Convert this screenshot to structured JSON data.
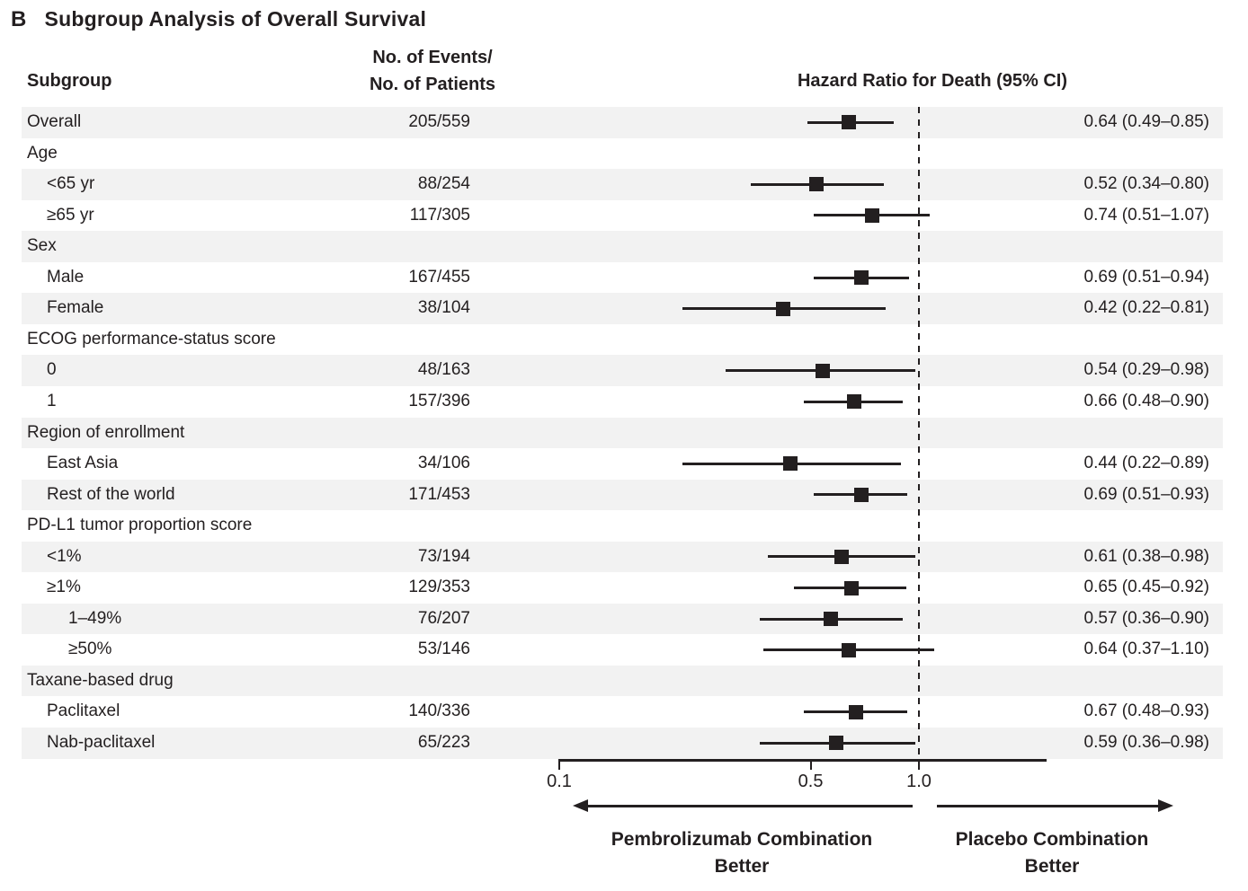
{
  "title": {
    "panel_letter": "B",
    "text": "Subgroup Analysis of Overall Survival"
  },
  "columns": {
    "subgroup": "Subgroup",
    "events_line1": "No. of Events/",
    "events_line2": "No. of Patients",
    "hazard": "Hazard Ratio for Death (95% CI)"
  },
  "footer": {
    "left_line1": "Pembrolizumab Combination",
    "left_line2": "Better",
    "right_line1": "Placebo Combination",
    "right_line2": "Better"
  },
  "colors": {
    "text": "#231f20",
    "band": "#f2f2f2",
    "marker": "#231f20",
    "line": "#231f20"
  },
  "chart_data": {
    "type": "scatter",
    "subtype": "forest-plot",
    "title": "Subgroup Analysis of Overall Survival",
    "xlabel": "Hazard Ratio for Death (95% CI)",
    "x_scale": "log",
    "x_ticks": [
      0.1,
      0.5,
      1.0
    ],
    "x_tick_labels": [
      "0.1",
      "0.5",
      "1.0"
    ],
    "x_range": [
      0.1,
      2.3
    ],
    "reference_line": 1.0,
    "legend_position": "none",
    "grid": false,
    "rows": [
      {
        "label": "Overall",
        "indent": 0,
        "header": false,
        "shaded": true,
        "events": "205/559",
        "hr": 0.64,
        "ci_low": 0.49,
        "ci_high": 0.85,
        "hr_text": "0.64 (0.49–0.85)"
      },
      {
        "label": "Age",
        "indent": 0,
        "header": true,
        "shaded": false
      },
      {
        "label": "<65 yr",
        "indent": 1,
        "header": false,
        "shaded": true,
        "events": "88/254",
        "hr": 0.52,
        "ci_low": 0.34,
        "ci_high": 0.8,
        "hr_text": "0.52 (0.34–0.80)"
      },
      {
        "label": "≥65 yr",
        "indent": 1,
        "header": false,
        "shaded": false,
        "events": "117/305",
        "hr": 0.74,
        "ci_low": 0.51,
        "ci_high": 1.07,
        "hr_text": "0.74 (0.51–1.07)"
      },
      {
        "label": "Sex",
        "indent": 0,
        "header": true,
        "shaded": true
      },
      {
        "label": "Male",
        "indent": 1,
        "header": false,
        "shaded": false,
        "events": "167/455",
        "hr": 0.69,
        "ci_low": 0.51,
        "ci_high": 0.94,
        "hr_text": "0.69 (0.51–0.94)"
      },
      {
        "label": "Female",
        "indent": 1,
        "header": false,
        "shaded": true,
        "events": "38/104",
        "hr": 0.42,
        "ci_low": 0.22,
        "ci_high": 0.81,
        "hr_text": "0.42 (0.22–0.81)"
      },
      {
        "label": "ECOG performance-status score",
        "indent": 0,
        "header": true,
        "shaded": false
      },
      {
        "label": "0",
        "indent": 1,
        "header": false,
        "shaded": true,
        "events": "48/163",
        "hr": 0.54,
        "ci_low": 0.29,
        "ci_high": 0.98,
        "hr_text": "0.54 (0.29–0.98)"
      },
      {
        "label": "1",
        "indent": 1,
        "header": false,
        "shaded": false,
        "events": "157/396",
        "hr": 0.66,
        "ci_low": 0.48,
        "ci_high": 0.9,
        "hr_text": "0.66 (0.48–0.90)"
      },
      {
        "label": "Region of enrollment",
        "indent": 0,
        "header": true,
        "shaded": true
      },
      {
        "label": "East Asia",
        "indent": 1,
        "header": false,
        "shaded": false,
        "events": "34/106",
        "hr": 0.44,
        "ci_low": 0.22,
        "ci_high": 0.89,
        "hr_text": "0.44 (0.22–0.89)"
      },
      {
        "label": "Rest of the world",
        "indent": 1,
        "header": false,
        "shaded": true,
        "events": "171/453",
        "hr": 0.69,
        "ci_low": 0.51,
        "ci_high": 0.93,
        "hr_text": "0.69 (0.51–0.93)"
      },
      {
        "label": "PD-L1 tumor proportion score",
        "indent": 0,
        "header": true,
        "shaded": false
      },
      {
        "label": "<1%",
        "indent": 1,
        "header": false,
        "shaded": true,
        "events": "73/194",
        "hr": 0.61,
        "ci_low": 0.38,
        "ci_high": 0.98,
        "hr_text": "0.61 (0.38–0.98)"
      },
      {
        "label": "≥1%",
        "indent": 1,
        "header": false,
        "shaded": false,
        "events": "129/353",
        "hr": 0.65,
        "ci_low": 0.45,
        "ci_high": 0.92,
        "hr_text": "0.65 (0.45–0.92)"
      },
      {
        "label": "1–49%",
        "indent": 2,
        "header": false,
        "shaded": true,
        "events": "76/207",
        "hr": 0.57,
        "ci_low": 0.36,
        "ci_high": 0.9,
        "hr_text": "0.57 (0.36–0.90)"
      },
      {
        "label": "≥50%",
        "indent": 2,
        "header": false,
        "shaded": false,
        "events": "53/146",
        "hr": 0.64,
        "ci_low": 0.37,
        "ci_high": 1.1,
        "hr_text": "0.64 (0.37–1.10)"
      },
      {
        "label": "Taxane-based drug",
        "indent": 0,
        "header": true,
        "shaded": true
      },
      {
        "label": "Paclitaxel",
        "indent": 1,
        "header": false,
        "shaded": false,
        "events": "140/336",
        "hr": 0.67,
        "ci_low": 0.48,
        "ci_high": 0.93,
        "hr_text": "0.67 (0.48–0.93)"
      },
      {
        "label": "Nab-paclitaxel",
        "indent": 1,
        "header": false,
        "shaded": true,
        "events": "65/223",
        "hr": 0.59,
        "ci_low": 0.36,
        "ci_high": 0.98,
        "hr_text": "0.59 (0.36–0.98)"
      }
    ]
  }
}
